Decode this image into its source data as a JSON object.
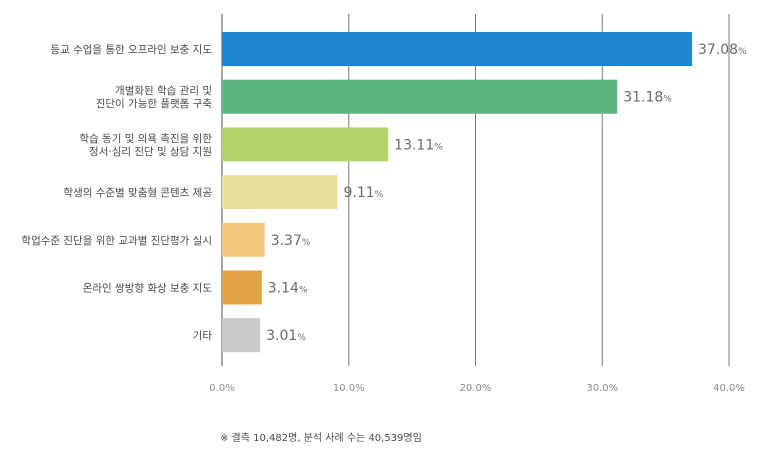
{
  "chart_data": {
    "type": "bar",
    "orientation": "horizontal",
    "categories": [
      [
        "등교 수업을 통한 오프라인 보충 지도"
      ],
      [
        "개별화된 학습 관리 및",
        "진단이 가능한 플랫폼 구축"
      ],
      [
        "학습 동기 및 의욕 촉진을 위한",
        "정서·심리 진단 및 상담 지원"
      ],
      [
        "학생의 수준별 맞춤형 콘텐츠 제공"
      ],
      [
        "학업수준 진단을 위한 교과별 진단평가 실시"
      ],
      [
        "온라인 쌍방향 화상 보충 지도"
      ],
      [
        "기타"
      ]
    ],
    "values": [
      37.08,
      31.18,
      13.11,
      9.11,
      3.37,
      3.14,
      3.01
    ],
    "value_labels": [
      "37.08",
      "31.18",
      "13.11",
      "9.11",
      "3.37",
      "3.14",
      "3.01"
    ],
    "value_unit": "%",
    "colors": [
      "#1f87d2",
      "#5cb57e",
      "#b3d46a",
      "#e8e09e",
      "#f2c97a",
      "#e2a344",
      "#c9c9c9"
    ],
    "xlim": [
      0,
      40
    ],
    "xticks": [
      0,
      10,
      20,
      30,
      40
    ],
    "xtick_labels": [
      "0.0%",
      "10.0%",
      "20.0%",
      "30.0%",
      "40.0%"
    ],
    "grid": "vertical",
    "title": "",
    "xlabel": "",
    "ylabel": ""
  },
  "note": "※ 결측 10,482명, 분석 사례 수는 40,539명임"
}
